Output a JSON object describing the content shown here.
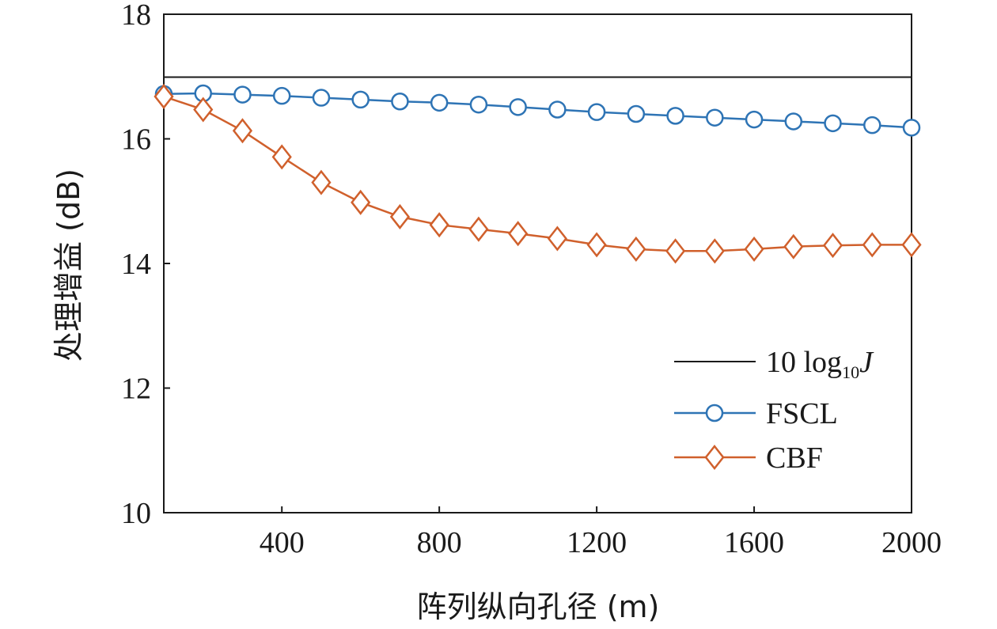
{
  "chart_data": {
    "type": "line",
    "xlabel": "阵列纵向孔径 (m)",
    "ylabel": "处理增益 (dB)",
    "xlim": [
      100,
      2000
    ],
    "ylim": [
      10,
      18
    ],
    "xticks": [
      400,
      800,
      1200,
      1600,
      2000
    ],
    "yticks": [
      10,
      12,
      14,
      16,
      18
    ],
    "grid": false,
    "legend_position": "bottom-right",
    "x": [
      100,
      200,
      300,
      400,
      500,
      600,
      700,
      800,
      900,
      1000,
      1100,
      1200,
      1300,
      1400,
      1500,
      1600,
      1700,
      1800,
      1900,
      2000
    ],
    "series": [
      {
        "name": "10 log10J",
        "legend_main": "10 log",
        "legend_sub": "10",
        "legend_var": "J",
        "color": "#1a1a1a",
        "marker": "none",
        "values": [
          16.99,
          16.99,
          16.99,
          16.99,
          16.99,
          16.99,
          16.99,
          16.99,
          16.99,
          16.99,
          16.99,
          16.99,
          16.99,
          16.99,
          16.99,
          16.99,
          16.99,
          16.99,
          16.99,
          16.99
        ]
      },
      {
        "name": "FSCL",
        "color": "#2e74b5",
        "marker": "circle",
        "values": [
          16.72,
          16.73,
          16.71,
          16.69,
          16.66,
          16.63,
          16.6,
          16.58,
          16.55,
          16.51,
          16.47,
          16.43,
          16.4,
          16.37,
          16.34,
          16.31,
          16.28,
          16.25,
          16.22,
          16.18
        ]
      },
      {
        "name": "CBF",
        "color": "#d0602c",
        "marker": "diamond",
        "values": [
          16.68,
          16.47,
          16.13,
          15.71,
          15.3,
          14.98,
          14.75,
          14.62,
          14.55,
          14.48,
          14.4,
          14.3,
          14.23,
          14.2,
          14.2,
          14.23,
          14.27,
          14.29,
          14.3,
          14.3
        ]
      }
    ]
  }
}
